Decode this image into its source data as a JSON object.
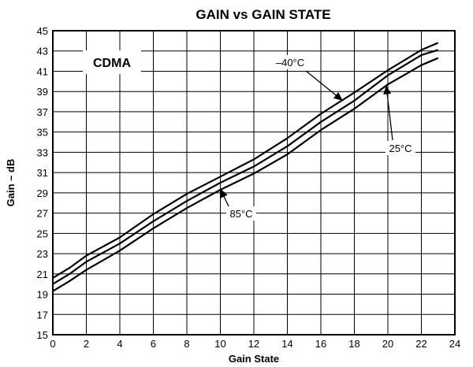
{
  "chart_data": {
    "type": "line",
    "title": "GAIN vs GAIN STATE",
    "xlabel": "Gain State",
    "ylabel": "Gain – dB",
    "xlim": [
      0,
      24
    ],
    "ylim": [
      15,
      45
    ],
    "xticks": [
      0,
      2,
      4,
      6,
      8,
      10,
      12,
      14,
      16,
      18,
      20,
      22,
      24
    ],
    "yticks": [
      15,
      17,
      19,
      21,
      23,
      25,
      27,
      29,
      31,
      33,
      35,
      37,
      39,
      41,
      43,
      45
    ],
    "grid": true,
    "inset_label": "CDMA",
    "x": [
      0,
      1,
      2,
      4,
      6,
      8,
      10,
      12,
      14,
      16,
      18,
      20,
      22,
      23
    ],
    "series": [
      {
        "name": "–40°C",
        "values": [
          20.6,
          21.6,
          22.8,
          24.6,
          26.9,
          28.9,
          30.6,
          32.3,
          34.4,
          36.8,
          38.9,
          41.1,
          43.1,
          43.8
        ]
      },
      {
        "name": "25°C",
        "values": [
          20.0,
          21.0,
          22.2,
          24.0,
          26.2,
          28.2,
          30.0,
          31.6,
          33.6,
          36.0,
          38.1,
          40.6,
          42.6,
          43.1
        ]
      },
      {
        "name": "85°C",
        "values": [
          19.3,
          20.3,
          21.4,
          23.3,
          25.5,
          27.5,
          29.3,
          30.9,
          32.8,
          35.2,
          37.3,
          39.7,
          41.6,
          42.3
        ]
      }
    ],
    "annotations": [
      {
        "series": "–40°C",
        "text": "–40°C",
        "arrow_to": [
          17.3,
          38.1
        ]
      },
      {
        "series": "25°C",
        "text": "25°C",
        "arrow_to": [
          19.9,
          39.6
        ]
      },
      {
        "series": "85°C",
        "text": "85°C",
        "arrow_to": [
          10.0,
          29.4
        ]
      }
    ]
  }
}
